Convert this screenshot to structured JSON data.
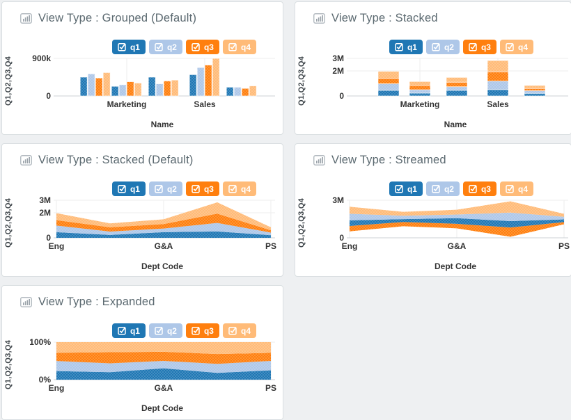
{
  "app": {
    "background": "#eef0f2",
    "panel_background": "#ffffff",
    "panel_border": "#d9dee1",
    "title_color": "#5b6970",
    "axis_text_color": "#333333"
  },
  "legend": {
    "items": [
      {
        "label": "q1",
        "color": "#1f77b4",
        "checked": true
      },
      {
        "label": "q2",
        "color": "#aec7e8",
        "checked": true
      },
      {
        "label": "q3",
        "color": "#ff7f0e",
        "checked": true
      },
      {
        "label": "q4",
        "color": "#ffbb78",
        "checked": true
      }
    ]
  },
  "chart_data": [
    {
      "type": "bar",
      "variant": "grouped",
      "title": "View Type : Grouped (Default)",
      "xlabel": "Name",
      "ylabel": "Q1,Q2,Q3,Q4",
      "categories": [
        "",
        "Marketing",
        "",
        "Sales",
        ""
      ],
      "unit": "thousands",
      "ylim": [
        0,
        900
      ],
      "yticks": [
        {
          "value": 900,
          "label": "900k"
        },
        {
          "value": 0,
          "label": "0"
        }
      ],
      "series": [
        {
          "name": "q1",
          "color": "#1f77b4",
          "values": [
            450,
            230,
            450,
            510,
            210
          ]
        },
        {
          "name": "q2",
          "color": "#aec7e8",
          "values": [
            530,
            270,
            290,
            680,
            210
          ]
        },
        {
          "name": "q3",
          "color": "#ff7f0e",
          "values": [
            430,
            340,
            360,
            740,
            180
          ]
        },
        {
          "name": "q4",
          "color": "#ffbb78",
          "values": [
            560,
            310,
            380,
            900,
            240
          ]
        }
      ]
    },
    {
      "type": "bar",
      "variant": "stacked",
      "title": "View Type : Stacked",
      "xlabel": "Name",
      "ylabel": "Q1,Q2,Q3,Q4",
      "categories": [
        "",
        "Marketing",
        "",
        "Sales",
        ""
      ],
      "unit": "thousands",
      "ylim": [
        0,
        3000
      ],
      "yticks": [
        {
          "value": 3000,
          "label": "3M"
        },
        {
          "value": 2000,
          "label": "2M"
        },
        {
          "value": 0,
          "label": "0"
        }
      ],
      "series": [
        {
          "name": "q1",
          "color": "#1f77b4",
          "values": [
            450,
            230,
            450,
            510,
            210
          ]
        },
        {
          "name": "q2",
          "color": "#aec7e8",
          "values": [
            530,
            270,
            290,
            680,
            210
          ]
        },
        {
          "name": "q3",
          "color": "#ff7f0e",
          "values": [
            430,
            340,
            360,
            740,
            180
          ]
        },
        {
          "name": "q4",
          "color": "#ffbb78",
          "values": [
            560,
            310,
            380,
            900,
            240
          ]
        }
      ]
    },
    {
      "type": "area",
      "variant": "stacked",
      "title": "View Type : Stacked (Default)",
      "xlabel": "Dept Code",
      "ylabel": "Q1,Q2,Q3,Q4",
      "categories": [
        "Eng",
        "",
        "G&A",
        "",
        "PS"
      ],
      "unit": "thousands",
      "ylim": [
        0,
        3000
      ],
      "yticks": [
        {
          "value": 3000,
          "label": "3M"
        },
        {
          "value": 2000,
          "label": "2M"
        },
        {
          "value": 0,
          "label": "0"
        }
      ],
      "series": [
        {
          "name": "q1",
          "color": "#1f77b4",
          "values": [
            450,
            230,
            450,
            510,
            210
          ]
        },
        {
          "name": "q2",
          "color": "#aec7e8",
          "values": [
            530,
            270,
            290,
            680,
            210
          ]
        },
        {
          "name": "q3",
          "color": "#ff7f0e",
          "values": [
            430,
            340,
            360,
            740,
            180
          ]
        },
        {
          "name": "q4",
          "color": "#ffbb78",
          "values": [
            560,
            310,
            380,
            900,
            240
          ]
        }
      ]
    },
    {
      "type": "area",
      "variant": "stream",
      "title": "View Type : Streamed",
      "xlabel": "Dept Code",
      "ylabel": "Q1,Q2,Q3,Q4",
      "categories": [
        "Eng",
        "",
        "G&A",
        "",
        "PS"
      ],
      "unit": "thousands",
      "ylim": [
        0,
        3000
      ],
      "yticks": [
        {
          "value": 3000,
          "label": "3M"
        },
        {
          "value": 0,
          "label": "0"
        }
      ],
      "stack_order_bottom_to_top": [
        "q3",
        "q1",
        "q2",
        "q4"
      ],
      "series": [
        {
          "name": "q1",
          "color": "#1f77b4",
          "values": [
            450,
            230,
            450,
            510,
            210
          ]
        },
        {
          "name": "q2",
          "color": "#aec7e8",
          "values": [
            530,
            270,
            290,
            680,
            210
          ]
        },
        {
          "name": "q3",
          "color": "#ff7f0e",
          "values": [
            430,
            340,
            360,
            740,
            180
          ]
        },
        {
          "name": "q4",
          "color": "#ffbb78",
          "values": [
            560,
            310,
            380,
            900,
            240
          ]
        }
      ]
    },
    {
      "type": "area",
      "variant": "expanded",
      "title": "View Type : Expanded",
      "xlabel": "Dept Code",
      "ylabel": "Q1,Q2,Q3,Q4",
      "categories": [
        "Eng",
        "",
        "G&A",
        "",
        "PS"
      ],
      "unit": "percent",
      "ylim": [
        0,
        100
      ],
      "yticks": [
        {
          "value": 100,
          "label": "100%"
        },
        {
          "value": 0,
          "label": "0%"
        }
      ],
      "series": [
        {
          "name": "q1",
          "color": "#1f77b4",
          "values": [
            450,
            230,
            450,
            510,
            210
          ]
        },
        {
          "name": "q2",
          "color": "#aec7e8",
          "values": [
            530,
            270,
            290,
            680,
            210
          ]
        },
        {
          "name": "q3",
          "color": "#ff7f0e",
          "values": [
            430,
            340,
            360,
            740,
            180
          ]
        },
        {
          "name": "q4",
          "color": "#ffbb78",
          "values": [
            560,
            310,
            380,
            900,
            240
          ]
        }
      ]
    }
  ]
}
